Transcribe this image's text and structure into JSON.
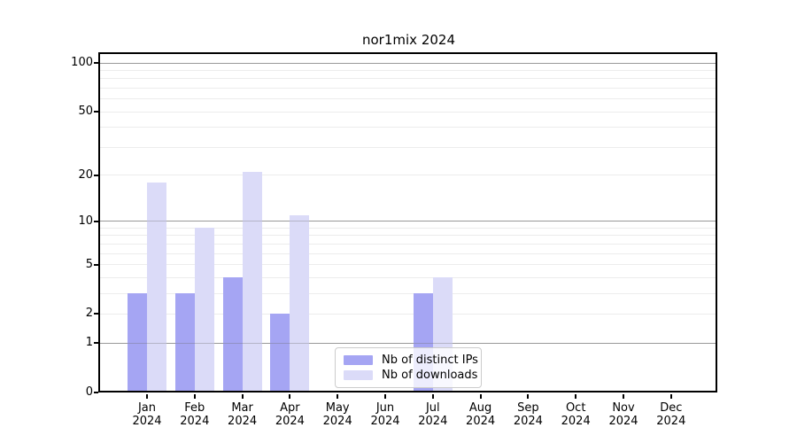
{
  "title": "nor1mix 2024",
  "legend": {
    "items": [
      {
        "label": "Nb of distinct IPs",
        "color": "#a5a5f3"
      },
      {
        "label": "Nb of downloads",
        "color": "#dbdbf8"
      }
    ]
  },
  "y_axis": {
    "ticks": [
      {
        "label": "100",
        "value": 100
      },
      {
        "label": "50",
        "value": 50
      },
      {
        "label": "20",
        "value": 20
      },
      {
        "label": "10",
        "value": 10
      },
      {
        "label": "5",
        "value": 5
      },
      {
        "label": "2",
        "value": 2
      },
      {
        "label": "1",
        "value": 1
      },
      {
        "label": "0",
        "value": 0
      }
    ],
    "major_gridlines": [
      1,
      10,
      100
    ],
    "minor_gridlines": [
      2,
      3,
      4,
      5,
      6,
      7,
      8,
      9,
      20,
      30,
      40,
      50,
      60,
      70,
      80,
      90
    ]
  },
  "x_axis": {
    "year": "2024",
    "months": [
      "Jan",
      "Feb",
      "Mar",
      "Apr",
      "May",
      "Jun",
      "Jul",
      "Aug",
      "Sep",
      "Oct",
      "Nov",
      "Dec"
    ]
  },
  "chart_data": {
    "type": "bar",
    "title": "nor1mix 2024",
    "categories": [
      "Jan 2024",
      "Feb 2024",
      "Mar 2024",
      "Apr 2024",
      "May 2024",
      "Jun 2024",
      "Jul 2024",
      "Aug 2024",
      "Sep 2024",
      "Oct 2024",
      "Nov 2024",
      "Dec 2024"
    ],
    "series": [
      {
        "name": "Nb of distinct IPs",
        "color": "#a5a5f3",
        "values": [
          3,
          3,
          4,
          2,
          0,
          0,
          3,
          0,
          0,
          0,
          0,
          0
        ]
      },
      {
        "name": "Nb of downloads",
        "color": "#dbdbf8",
        "values": [
          18,
          9,
          21,
          11,
          0,
          0,
          4,
          0,
          0,
          0,
          0,
          0
        ]
      }
    ],
    "yscale": "log1p",
    "ylim": [
      0,
      113
    ],
    "ytick_values": [
      0,
      1,
      2,
      5,
      10,
      20,
      50,
      100
    ],
    "grid": "horizontal",
    "legend_position": "lower center"
  },
  "colors": {
    "ips_bar": "#a5a5f3",
    "downloads_bar": "#dbdbf8",
    "major_grid": "#b0b0b0",
    "minor_grid": "#ececec",
    "spine": "#000000",
    "background": "#ffffff",
    "legend_border": "#cccccc"
  }
}
